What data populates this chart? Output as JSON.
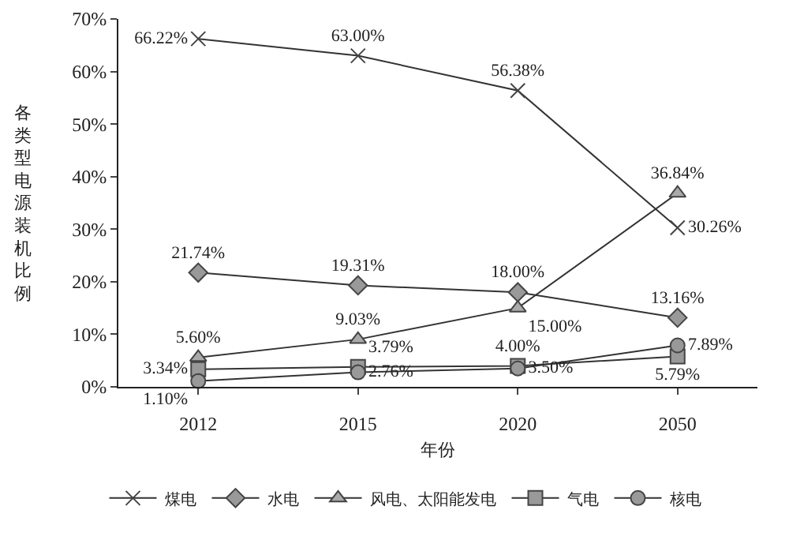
{
  "chart_data": {
    "type": "line",
    "xlabel": "年份",
    "ylabel": "各类型电源装机比例",
    "categories": [
      "2012",
      "2015",
      "2020",
      "2050"
    ],
    "ylim": [
      0,
      70
    ],
    "yticks": [
      {
        "value": 0,
        "label": "0%"
      },
      {
        "value": 10,
        "label": "10%"
      },
      {
        "value": 20,
        "label": "20%"
      },
      {
        "value": 30,
        "label": "30%"
      },
      {
        "value": 40,
        "label": "40%"
      },
      {
        "value": 50,
        "label": "50%"
      },
      {
        "value": 60,
        "label": "60%"
      },
      {
        "value": 70,
        "label": "70%"
      }
    ],
    "grid": false,
    "legend": "bottom",
    "line_style": "solid",
    "series": [
      {
        "name": "煤电",
        "color": "#333333",
        "marker": "cross",
        "values": [
          66.22,
          63.0,
          56.38,
          30.26
        ],
        "value_labels": [
          "66.22%",
          "63.00%",
          "56.38%",
          "30.26%"
        ]
      },
      {
        "name": "水电",
        "color": "#999999",
        "marker": "diamond",
        "values": [
          21.74,
          19.31,
          18.0,
          13.16
        ],
        "value_labels": [
          "21.74%",
          "19.31%",
          "18.00%",
          "13.16%"
        ]
      },
      {
        "name": "风电、太阳能发电",
        "color": "#aaaaaa",
        "marker": "triangle",
        "values": [
          5.6,
          9.03,
          15.0,
          36.84
        ],
        "value_labels": [
          "5.60%",
          "9.03%",
          "15.00%",
          "36.84%"
        ]
      },
      {
        "name": "气电",
        "color": "#999999",
        "marker": "square",
        "values": [
          3.34,
          3.79,
          4.0,
          5.79
        ],
        "value_labels": [
          "3.34%",
          "3.79%",
          "4.00%",
          "5.79%"
        ]
      },
      {
        "name": "核电",
        "color": "#999999",
        "marker": "circle",
        "values": [
          1.1,
          2.76,
          3.5,
          7.89
        ],
        "value_labels": [
          "1.10%",
          "2.76%",
          "3.50%",
          "7.89%"
        ]
      }
    ]
  }
}
